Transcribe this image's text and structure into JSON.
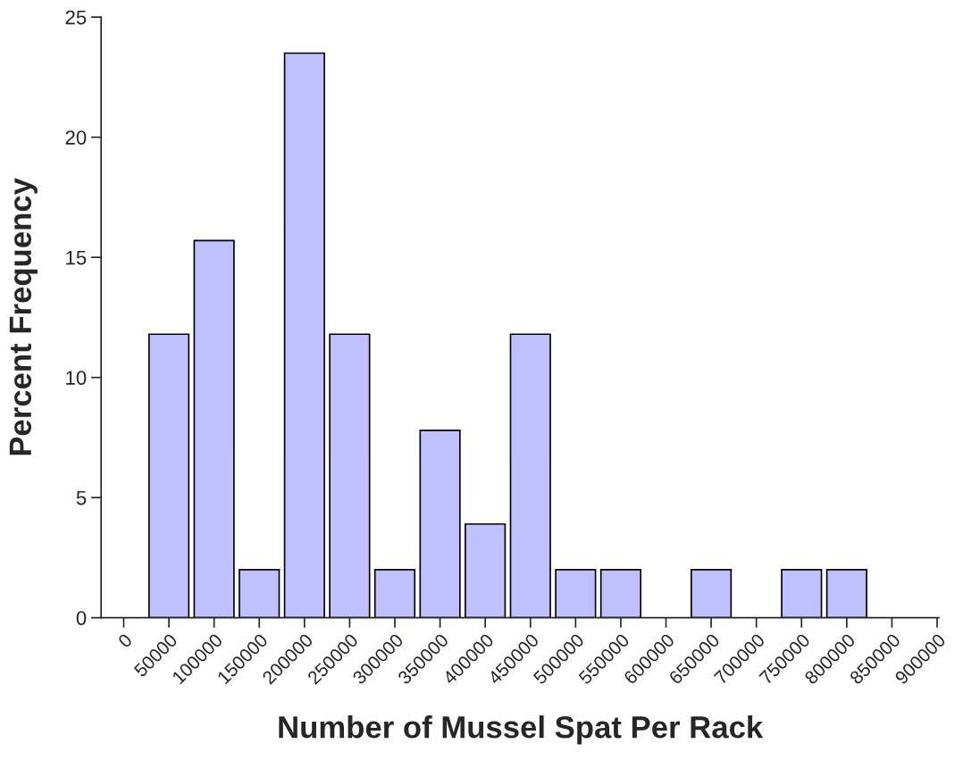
{
  "chart_data": {
    "type": "bar",
    "xlabel": "Number of Mussel Spat Per Rack",
    "ylabel": "Percent Frequency",
    "x": [
      50000,
      100000,
      150000,
      200000,
      250000,
      300000,
      350000,
      400000,
      450000,
      500000,
      550000,
      650000,
      750000,
      800000
    ],
    "values": [
      11.8,
      15.7,
      2,
      23.5,
      11.8,
      2,
      7.8,
      3.9,
      11.8,
      2,
      2,
      2,
      2,
      2
    ],
    "color": "#c0c0ff",
    "xlim": [
      -25000,
      902000
    ],
    "xticks": [
      0,
      50000,
      100000,
      150000,
      200000,
      250000,
      300000,
      350000,
      400000,
      450000,
      500000,
      550000,
      600000,
      650000,
      700000,
      750000,
      800000,
      850000,
      900000
    ],
    "ylim": [
      0,
      25
    ],
    "yticks": [
      0,
      5,
      10,
      15,
      20,
      25
    ],
    "grid": false
  }
}
